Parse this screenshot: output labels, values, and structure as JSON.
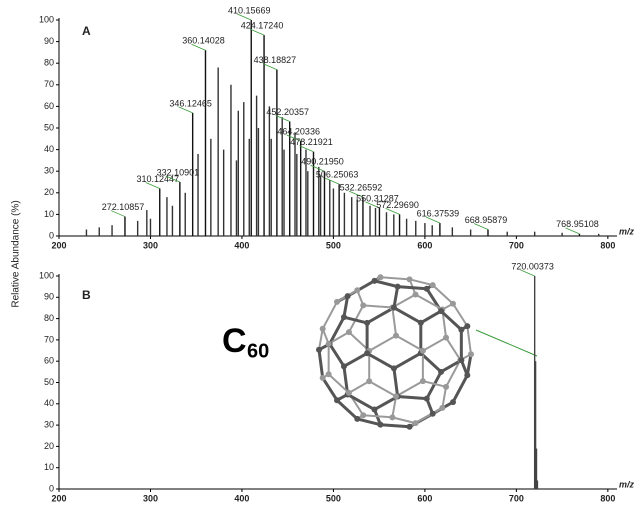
{
  "chart_data": [
    {
      "type": "spectrum",
      "panel_label": "A",
      "ylabel": "Relative Abundance (%)",
      "xlabel": "m/z",
      "xlim": [
        200,
        810
      ],
      "xticks": [
        200,
        300,
        400,
        500,
        600,
        700,
        800
      ],
      "ylim": [
        0,
        100
      ],
      "yticks": [
        0,
        10,
        20,
        30,
        40,
        50,
        60,
        70,
        80,
        90,
        100
      ],
      "series": [
        {
          "color": "#333333",
          "x": [
            230,
            244,
            258,
            286,
            296,
            300,
            318,
            324,
            338,
            352,
            366,
            374,
            380,
            388,
            394,
            396,
            402,
            408,
            416,
            418,
            430,
            432,
            444,
            446,
            458,
            460,
            470,
            472,
            484,
            486,
            496,
            500,
            512,
            520,
            526,
            540,
            546,
            558,
            566,
            580,
            590,
            600,
            608,
            630,
            650,
            690,
            720,
            750,
            790
          ],
          "values": [
            3,
            4,
            5,
            7,
            12,
            8,
            18,
            14,
            20,
            38,
            45,
            78,
            40,
            70,
            35,
            58,
            62,
            45,
            65,
            50,
            60,
            45,
            55,
            40,
            48,
            38,
            40,
            30,
            32,
            28,
            26,
            22,
            20,
            18,
            17,
            14,
            13,
            11,
            10,
            8,
            7,
            6,
            5,
            4,
            3,
            2,
            2,
            1.5,
            1
          ]
        },
        {
          "color": "#111111",
          "x": [
            272.10857,
            310.12447,
            332.10901,
            346.12465,
            360.14028,
            410.15669,
            424.1724,
            438.18827,
            452.20357,
            464.20336,
            478.21921,
            490.2195,
            506.25063,
            532.26592,
            550.31287,
            572.2969,
            616.37539,
            668.95879,
            768.95108
          ],
          "peak_labels": [
            "272.10857",
            "310.12447",
            "332.10901",
            "346.12465",
            "360.14028",
            "410.15669",
            "424.17240",
            "438.18827",
            "452.20357",
            "464.20336",
            "478.21921",
            "490.21950",
            "506.25063",
            "532.26592",
            "550.31287",
            "572.29690",
            "616.37539",
            "668.95879",
            "768.95108"
          ],
          "values": [
            9,
            22,
            25,
            57,
            86,
            100,
            93,
            77,
            53,
            44,
            39,
            30,
            24,
            18,
            13,
            10,
            6,
            3,
            1
          ]
        }
      ]
    },
    {
      "type": "spectrum",
      "panel_label": "B",
      "xlabel": "m/z",
      "formula": "C",
      "formula_subscript": "60",
      "xlim": [
        200,
        810
      ],
      "xticks": [
        200,
        300,
        400,
        500,
        600,
        700,
        800
      ],
      "ylim": [
        0,
        100
      ],
      "yticks": [
        0,
        10,
        20,
        30,
        40,
        50,
        60,
        70,
        80,
        90,
        100
      ],
      "series": [
        {
          "color": "#444444",
          "x": [
            720.00373,
            721.0071,
            722.01,
            723.013
          ],
          "peak_labels": [
            "720.00373",
            null,
            null,
            null
          ],
          "values": [
            100,
            60,
            19,
            4
          ]
        }
      ]
    }
  ]
}
